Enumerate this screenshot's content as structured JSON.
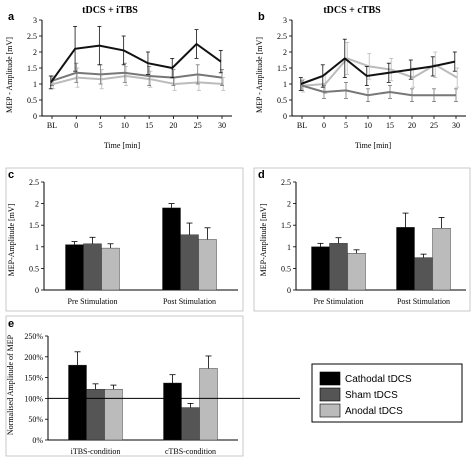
{
  "chart_data": [
    {
      "id": "a",
      "panel_letter": "a",
      "type": "line",
      "title": "tDCS + iTBS",
      "ylabel": "MEP - Amplitude [mV]",
      "xlabel": "Time [min]",
      "x": [
        "BL",
        "0",
        "5",
        "10",
        "15",
        "20",
        "25",
        "30"
      ],
      "ylim": [
        0,
        3
      ],
      "yticks": [
        "0",
        "0.5",
        "1",
        "1.5",
        "2",
        "2.5",
        "3"
      ],
      "series": [
        {
          "color": "#111111",
          "values": [
            1.05,
            2.1,
            2.2,
            2.05,
            1.65,
            1.5,
            2.25,
            1.7
          ],
          "errors": [
            0.2,
            0.7,
            0.6,
            0.45,
            0.35,
            0.3,
            0.45,
            0.35
          ]
        },
        {
          "color": "#777777",
          "values": [
            1.1,
            1.35,
            1.3,
            1.35,
            1.25,
            1.2,
            1.3,
            1.2
          ],
          "errors": [
            0.15,
            0.3,
            0.3,
            0.3,
            0.3,
            0.25,
            0.3,
            0.25
          ]
        },
        {
          "color": "#bbbbbb",
          "values": [
            1.0,
            1.2,
            1.15,
            1.25,
            1.15,
            1.0,
            1.05,
            1.0
          ],
          "errors": [
            0.15,
            0.3,
            0.3,
            0.3,
            0.25,
            0.2,
            0.25,
            0.2
          ]
        }
      ]
    },
    {
      "id": "b",
      "panel_letter": "b",
      "type": "line",
      "title": "tDCS + cTBS",
      "ylabel": "MEP - Amplitude [mV]",
      "xlabel": "Time [min]",
      "x": [
        "BL",
        "0",
        "5",
        "10",
        "15",
        "20",
        "25",
        "30"
      ],
      "ylim": [
        0,
        3
      ],
      "yticks": [
        "0",
        "0.5",
        "1",
        "1.5",
        "2",
        "2.5",
        "3"
      ],
      "series": [
        {
          "color": "#111111",
          "values": [
            1.0,
            1.25,
            1.8,
            1.25,
            1.35,
            1.45,
            1.55,
            1.7
          ],
          "errors": [
            0.2,
            0.35,
            0.6,
            0.3,
            0.3,
            0.3,
            0.3,
            0.3
          ]
        },
        {
          "color": "#777777",
          "values": [
            0.95,
            0.75,
            0.8,
            0.65,
            0.75,
            0.65,
            0.65,
            0.65
          ],
          "errors": [
            0.15,
            0.2,
            0.25,
            0.2,
            0.2,
            0.2,
            0.2,
            0.2
          ]
        },
        {
          "color": "#bbbbbb",
          "values": [
            0.95,
            1.0,
            1.8,
            1.55,
            1.45,
            1.2,
            1.6,
            1.2
          ],
          "errors": [
            0.2,
            0.3,
            0.5,
            0.4,
            0.35,
            0.3,
            0.4,
            0.3
          ]
        }
      ]
    },
    {
      "id": "c",
      "panel_letter": "c",
      "type": "bar",
      "ylabel": "MEP-Amplitude [mV]",
      "categories": [
        "Pre Stimulation",
        "Post Stimulation"
      ],
      "ylim": [
        0,
        2.5
      ],
      "yticks": [
        "0",
        "0.5",
        "1",
        "1.5",
        "2",
        "2.5"
      ],
      "series": [
        {
          "color": "#000000",
          "values": [
            1.05,
            1.9
          ],
          "errors": [
            0.07,
            0.1
          ]
        },
        {
          "color": "#555555",
          "values": [
            1.07,
            1.28
          ],
          "errors": [
            0.15,
            0.27
          ]
        },
        {
          "color": "#bbbbbb",
          "values": [
            0.97,
            1.17
          ],
          "errors": [
            0.1,
            0.27
          ]
        }
      ]
    },
    {
      "id": "d",
      "panel_letter": "d",
      "type": "bar",
      "ylabel": "MEP-Amplitude [mV]",
      "categories": [
        "Pre Stimulation",
        "Post Stimulation"
      ],
      "ylim": [
        0,
        2.5
      ],
      "yticks": [
        "0",
        "0.5",
        "1",
        "1.5",
        "2",
        "2.5"
      ],
      "series": [
        {
          "color": "#000000",
          "values": [
            1.0,
            1.45
          ],
          "errors": [
            0.08,
            0.33
          ]
        },
        {
          "color": "#555555",
          "values": [
            1.08,
            0.75
          ],
          "errors": [
            0.13,
            0.08
          ]
        },
        {
          "color": "#bbbbbb",
          "values": [
            0.85,
            1.43
          ],
          "errors": [
            0.08,
            0.25
          ]
        }
      ]
    },
    {
      "id": "e",
      "panel_letter": "e",
      "type": "bar",
      "ylabel": "Normalised Amplitude of MEP",
      "categories": [
        "iTBS-condition",
        "cTBS-condition"
      ],
      "ylim": [
        0,
        250
      ],
      "yticks": [
        "0%",
        "50%",
        "100%",
        "150%",
        "200%",
        "250%"
      ],
      "reference_line": 100,
      "series": [
        {
          "color": "#000000",
          "values": [
            180,
            137
          ],
          "errors": [
            32,
            20
          ]
        },
        {
          "color": "#555555",
          "values": [
            122,
            78
          ],
          "errors": [
            13,
            10
          ]
        },
        {
          "color": "#bbbbbb",
          "values": [
            122,
            172
          ],
          "errors": [
            10,
            30
          ]
        }
      ]
    }
  ],
  "legend": [
    {
      "label": "Cathodal tDCS",
      "color": "#000000"
    },
    {
      "label": "Sham tDCS",
      "color": "#555555"
    },
    {
      "label": "Anodal tDCS",
      "color": "#bbbbbb"
    }
  ]
}
